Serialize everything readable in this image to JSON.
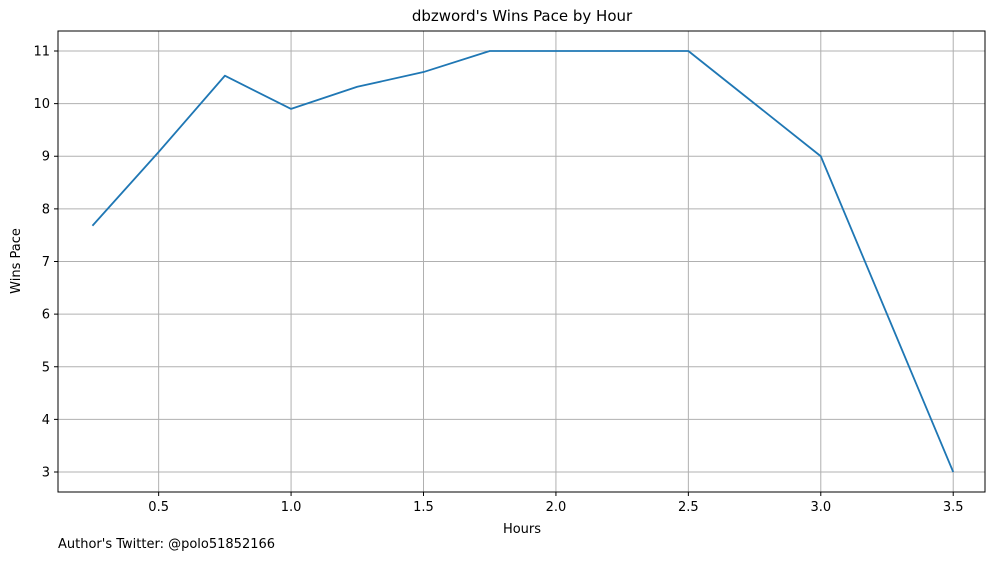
{
  "chart_data": {
    "type": "line",
    "title": "dbzword's Wins Pace by Hour",
    "xlabel": "Hours",
    "ylabel": "Wins Pace",
    "xlim": [
      0.12,
      3.62
    ],
    "ylim": [
      2.62,
      11.38
    ],
    "xticks": [
      0.5,
      1.0,
      1.5,
      2.0,
      2.5,
      3.0,
      3.5
    ],
    "xtick_labels": [
      "0.5",
      "1.0",
      "1.5",
      "2.0",
      "2.5",
      "3.0",
      "3.5"
    ],
    "yticks": [
      3,
      4,
      5,
      6,
      7,
      8,
      9,
      10,
      11
    ],
    "ytick_labels": [
      "3",
      "4",
      "5",
      "6",
      "7",
      "8",
      "9",
      "10",
      "11"
    ],
    "grid": true,
    "series": [
      {
        "color": "#1f77b4",
        "x": [
          0.25,
          0.5,
          0.75,
          1.0,
          1.25,
          1.5,
          1.75,
          2.0,
          2.25,
          2.5,
          2.75,
          3.0,
          3.25,
          3.5
        ],
        "y": [
          7.68,
          9.08,
          10.53,
          9.9,
          10.32,
          10.6,
          11.0,
          11.0,
          11.0,
          11.0,
          10.0,
          9.0,
          6.0,
          3.0
        ]
      }
    ]
  },
  "footer": {
    "text": "Author's Twitter: @polo51852166"
  }
}
